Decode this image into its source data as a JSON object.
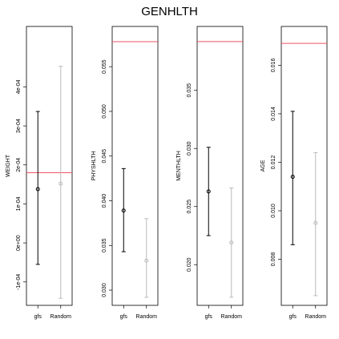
{
  "chart_data": [
    {
      "type": "errorbar",
      "title": "GENHLTH",
      "ylabel": "WEIGHT",
      "categories": [
        "gfs",
        "Random"
      ],
      "ylim": [
        -0.00016,
        0.000555
      ],
      "yticks": [
        -0.0001,
        0,
        0.0001,
        0.0002,
        0.0003,
        0.0004
      ],
      "ytick_labels": [
        "-1e-04",
        "0e+00",
        "1e-04",
        "2e-04",
        "3e-04",
        "4e-04"
      ],
      "reference_line": 0.00018,
      "points": [
        {
          "category": "gfs",
          "value": 0.000138,
          "lower": -5.5e-05,
          "upper": 0.000337,
          "color": "#000000"
        },
        {
          "category": "Random",
          "value": 0.000152,
          "lower": -0.000142,
          "upper": 0.000453,
          "color": "#bbbbbb"
        }
      ]
    },
    {
      "type": "errorbar",
      "ylabel": "PHYSHLTH",
      "categories": [
        "gfs",
        "Random"
      ],
      "ylim": [
        0.0283,
        0.0595
      ],
      "yticks": [
        0.03,
        0.035,
        0.04,
        0.045,
        0.05,
        0.055
      ],
      "ytick_labels": [
        "0.030",
        "0.035",
        "0.040",
        "0.045",
        "0.050",
        "0.055"
      ],
      "reference_line": 0.0578,
      "points": [
        {
          "category": "gfs",
          "value": 0.0389,
          "lower": 0.0343,
          "upper": 0.0436,
          "color": "#000000"
        },
        {
          "category": "Random",
          "value": 0.0333,
          "lower": 0.0292,
          "upper": 0.038,
          "color": "#bbbbbb"
        }
      ]
    },
    {
      "type": "errorbar",
      "ylabel": "MENTHLTH",
      "categories": [
        "gfs",
        "Random"
      ],
      "ylim": [
        0.0165,
        0.0405
      ],
      "yticks": [
        0.02,
        0.025,
        0.03,
        0.035
      ],
      "ytick_labels": [
        "0.020",
        "0.025",
        "0.030",
        "0.035"
      ],
      "reference_line": 0.0392,
      "points": [
        {
          "category": "gfs",
          "value": 0.0263,
          "lower": 0.0225,
          "upper": 0.0301,
          "color": "#000000"
        },
        {
          "category": "Random",
          "value": 0.0219,
          "lower": 0.0172,
          "upper": 0.0266,
          "color": "#bbbbbb"
        }
      ]
    },
    {
      "type": "errorbar",
      "ylabel": "AGE",
      "categories": [
        "gfs",
        "Random"
      ],
      "ylim": [
        0.0061,
        0.0176
      ],
      "yticks": [
        0.008,
        0.01,
        0.012,
        0.014,
        0.016
      ],
      "ytick_labels": [
        "0.008",
        "0.010",
        "0.012",
        "0.014",
        "0.016"
      ],
      "reference_line": 0.0169,
      "points": [
        {
          "category": "gfs",
          "value": 0.0114,
          "lower": 0.0086,
          "upper": 0.0141,
          "color": "#000000"
        },
        {
          "category": "Random",
          "value": 0.0095,
          "lower": 0.0065,
          "upper": 0.0124,
          "color": "#bbbbbb"
        }
      ]
    }
  ],
  "colors": {
    "reference_line": "#ee5566",
    "gfs": "#000000",
    "random": "#bbbbbb",
    "frame": "#000000"
  }
}
